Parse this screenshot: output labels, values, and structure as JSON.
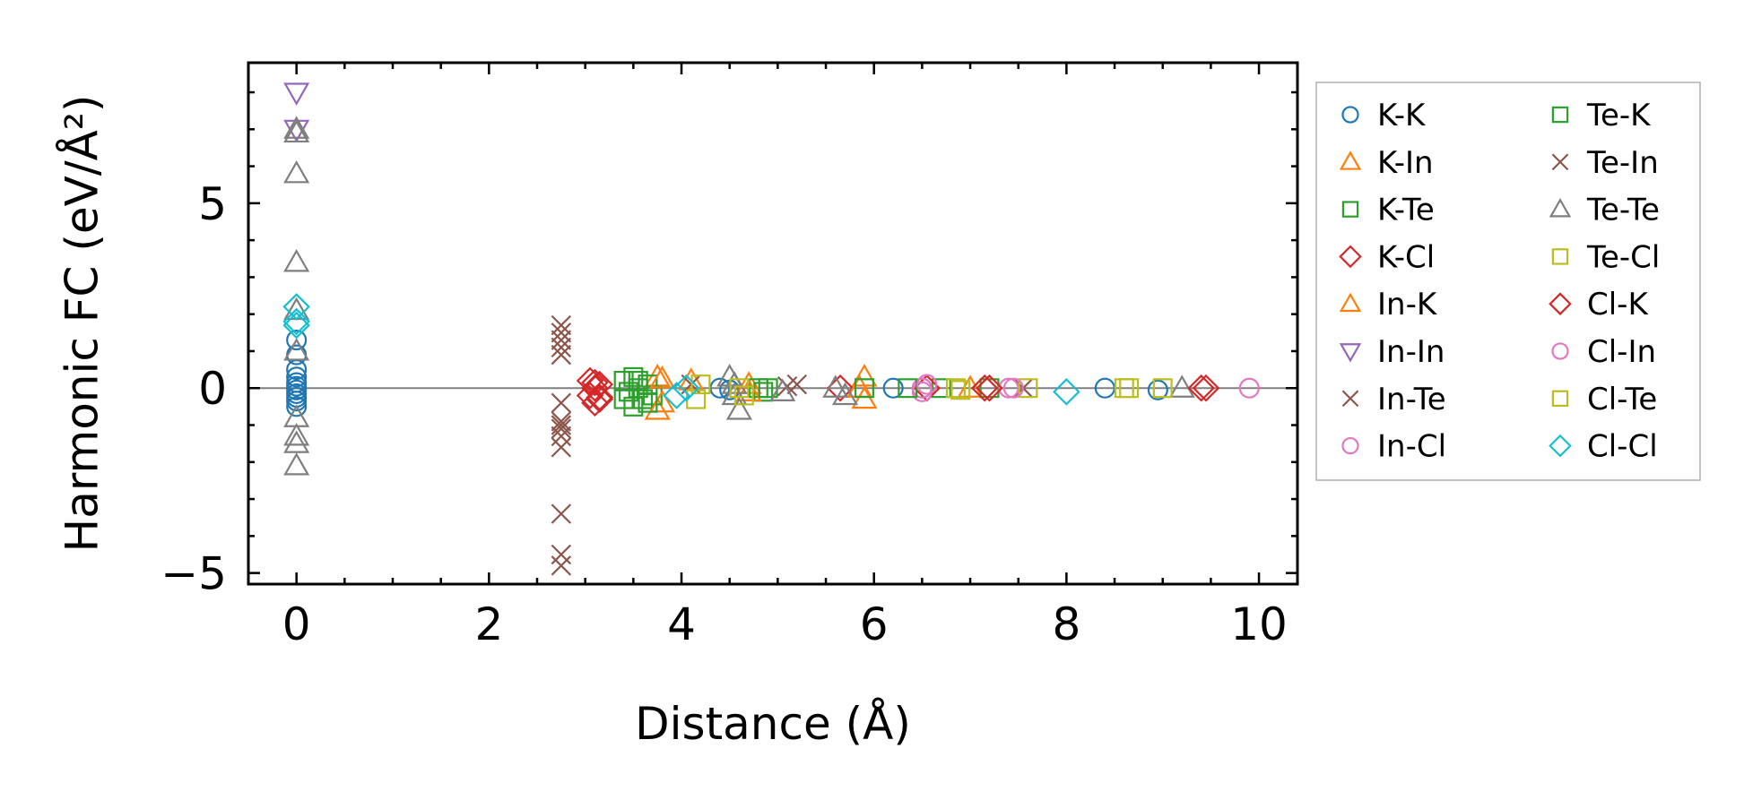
{
  "chart_data": {
    "type": "scatter",
    "title": "",
    "xlabel": "Distance (Å)",
    "ylabel": "Harmonic FC (eV/Å²)",
    "xlim": [
      -0.5,
      10.4
    ],
    "ylim": [
      -5.3,
      8.8
    ],
    "xticks": [
      0,
      2,
      4,
      6,
      8,
      10
    ],
    "xtick_labels": [
      "0",
      "2",
      "4",
      "6",
      "8",
      "10"
    ],
    "yticks": [
      -5,
      0,
      5
    ],
    "ytick_labels": [
      "−5",
      "0",
      "5"
    ],
    "grid": false,
    "zero_line": true,
    "legend_position": "outside-right",
    "legend_columns": 2,
    "series": [
      {
        "name": "K-K",
        "marker": "circle",
        "color": "#1f77b4",
        "points": [
          [
            0,
            0.3
          ],
          [
            0,
            0.15
          ],
          [
            0,
            0.05
          ],
          [
            0,
            -0.05
          ],
          [
            0,
            -0.15
          ],
          [
            0,
            -0.25
          ],
          [
            0,
            -0.35
          ],
          [
            0,
            0.5
          ],
          [
            0,
            -0.5
          ],
          [
            0,
            1.3
          ],
          [
            0,
            0.9
          ],
          [
            4.4,
            0
          ],
          [
            4.5,
            -0.05
          ],
          [
            6.2,
            0
          ],
          [
            6.5,
            0
          ],
          [
            8.4,
            0
          ],
          [
            8.95,
            -0.05
          ]
        ]
      },
      {
        "name": "K-In",
        "marker": "triangle-up",
        "color": "#ff7f0e",
        "points": [
          [
            3.75,
            0.3
          ],
          [
            3.75,
            -0.6
          ],
          [
            4.1,
            0.2
          ],
          [
            4.7,
            0.1
          ],
          [
            5.9,
            -0.3
          ],
          [
            5.9,
            0.3
          ],
          [
            7.0,
            0
          ]
        ]
      },
      {
        "name": "K-Te",
        "marker": "square",
        "color": "#2ca02c",
        "points": [
          [
            3.4,
            0.2
          ],
          [
            3.45,
            -0.1
          ],
          [
            3.5,
            -0.5
          ],
          [
            3.5,
            0.3
          ],
          [
            3.55,
            0
          ],
          [
            3.6,
            -0.3
          ],
          [
            3.65,
            0.1
          ],
          [
            3.7,
            -0.2
          ],
          [
            4.8,
            0
          ],
          [
            4.85,
            -0.1
          ],
          [
            6.7,
            0
          ],
          [
            7.2,
            0
          ]
        ]
      },
      {
        "name": "K-Cl",
        "marker": "diamond",
        "color": "#d62728",
        "points": [
          [
            3.05,
            0.2
          ],
          [
            3.05,
            -0.2
          ],
          [
            3.1,
            0
          ],
          [
            3.1,
            -0.4
          ],
          [
            3.15,
            0.1
          ],
          [
            3.15,
            -0.3
          ],
          [
            5.65,
            0
          ],
          [
            6.55,
            0
          ],
          [
            7.15,
            0
          ],
          [
            9.45,
            0
          ]
        ]
      },
      {
        "name": "In-K",
        "marker": "triangle-up",
        "color": "#ff7f0e",
        "points": [
          [
            3.8,
            0.25
          ],
          [
            3.8,
            -0.4
          ],
          [
            4.7,
            -0.1
          ],
          [
            5.85,
            0
          ]
        ]
      },
      {
        "name": "In-In",
        "marker": "triangle-down",
        "color": "#9467bd",
        "points": [
          [
            0,
            8.0
          ],
          [
            0,
            7.0
          ]
        ]
      },
      {
        "name": "In-Te",
        "marker": "x",
        "color": "#8c564b",
        "points": [
          [
            2.75,
            1.7
          ],
          [
            2.75,
            1.3
          ],
          [
            2.75,
            1.1
          ],
          [
            2.75,
            0.9
          ],
          [
            2.75,
            -0.4
          ],
          [
            2.75,
            -0.9
          ],
          [
            2.75,
            -1.1
          ],
          [
            2.75,
            -1.3
          ],
          [
            2.75,
            -1.6
          ],
          [
            2.75,
            -3.4
          ],
          [
            2.75,
            -4.5
          ],
          [
            2.75,
            -4.8
          ],
          [
            5.2,
            0.1
          ],
          [
            7.55,
            0
          ]
        ]
      },
      {
        "name": "In-Cl",
        "marker": "circle",
        "color": "#e377c2",
        "points": [
          [
            6.5,
            0
          ],
          [
            6.5,
            -0.1
          ],
          [
            7.4,
            0
          ],
          [
            9.9,
            0
          ]
        ]
      },
      {
        "name": "Te-K",
        "marker": "square",
        "color": "#2ca02c",
        "points": [
          [
            3.4,
            -0.3
          ],
          [
            3.55,
            0.2
          ],
          [
            3.65,
            -0.4
          ],
          [
            4.9,
            0
          ],
          [
            5.9,
            0
          ],
          [
            6.35,
            0
          ]
        ]
      },
      {
        "name": "Te-In",
        "marker": "x",
        "color": "#8c564b",
        "points": [
          [
            2.75,
            1.5
          ],
          [
            2.75,
            -1.0
          ],
          [
            4.1,
            0.1
          ],
          [
            5.1,
            0.05
          ]
        ]
      },
      {
        "name": "Te-Te",
        "marker": "triangle-up",
        "color": "#7f7f7f",
        "points": [
          [
            0,
            7.0
          ],
          [
            0,
            6.9
          ],
          [
            0,
            5.8
          ],
          [
            0,
            3.4
          ],
          [
            0,
            2.1
          ],
          [
            0,
            1.0
          ],
          [
            0,
            -0.8
          ],
          [
            0,
            -1.3
          ],
          [
            0,
            -1.5
          ],
          [
            0,
            -2.1
          ],
          [
            4.5,
            0.3
          ],
          [
            4.55,
            0.1
          ],
          [
            4.55,
            -0.2
          ],
          [
            4.6,
            -0.6
          ],
          [
            5.05,
            -0.1
          ],
          [
            5.6,
            0
          ],
          [
            5.7,
            -0.2
          ],
          [
            9.2,
            0
          ]
        ]
      },
      {
        "name": "Te-Cl",
        "marker": "square",
        "color": "#bcbd22",
        "points": [
          [
            4.15,
            -0.3
          ],
          [
            4.6,
            0
          ],
          [
            4.65,
            -0.2
          ],
          [
            6.85,
            0
          ],
          [
            7.6,
            0
          ],
          [
            8.6,
            0
          ],
          [
            9.0,
            0
          ]
        ]
      },
      {
        "name": "Cl-K",
        "marker": "diamond",
        "color": "#d62728",
        "points": [
          [
            3.1,
            0.15
          ],
          [
            3.15,
            -0.25
          ],
          [
            7.2,
            0
          ],
          [
            9.4,
            0
          ]
        ]
      },
      {
        "name": "Cl-In",
        "marker": "circle",
        "color": "#e377c2",
        "points": [
          [
            6.55,
            0.1
          ],
          [
            7.45,
            0
          ]
        ]
      },
      {
        "name": "Cl-Te",
        "marker": "square",
        "color": "#bcbd22",
        "points": [
          [
            4.2,
            0.1
          ],
          [
            6.9,
            -0.05
          ],
          [
            8.65,
            0
          ]
        ]
      },
      {
        "name": "Cl-Cl",
        "marker": "diamond",
        "color": "#17becf",
        "points": [
          [
            0,
            2.2
          ],
          [
            0,
            1.8
          ],
          [
            0,
            1.7
          ],
          [
            3.95,
            -0.2
          ],
          [
            4.05,
            0
          ],
          [
            8.0,
            -0.1
          ]
        ]
      }
    ]
  }
}
